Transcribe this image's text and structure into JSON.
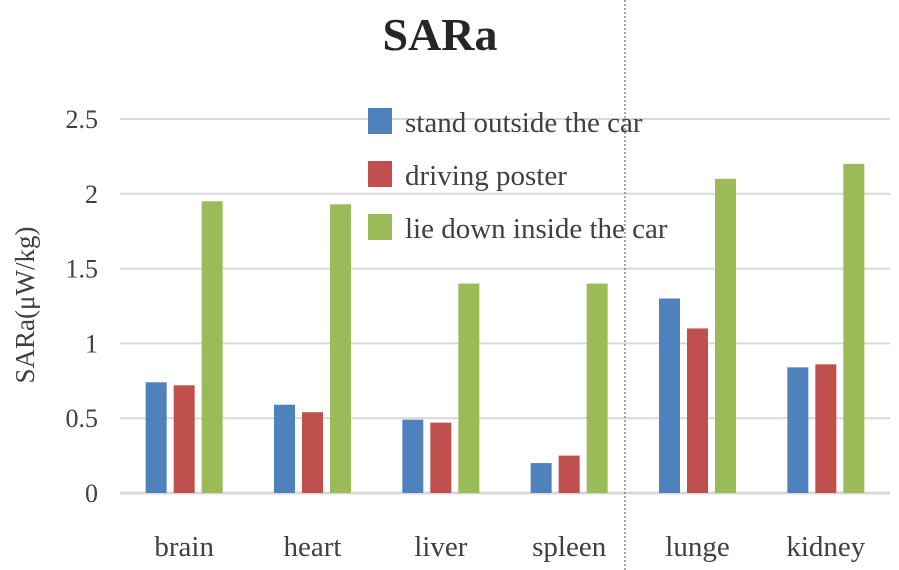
{
  "chart_data": {
    "type": "bar",
    "title": "SARa",
    "xlabel": "",
    "ylabel": "SARa(μW/kg)",
    "categories": [
      "brain",
      "heart",
      "liver",
      "spleen",
      "lunge",
      "kidney"
    ],
    "series": [
      {
        "name": "stand outside the car",
        "color": "#4f81bd",
        "values": [
          0.74,
          0.59,
          0.49,
          0.2,
          1.3,
          0.84
        ]
      },
      {
        "name": "driving poster",
        "color": "#c0504d",
        "values": [
          0.72,
          0.54,
          0.47,
          0.25,
          1.1,
          0.86
        ]
      },
      {
        "name": "lie down inside the car",
        "color": "#9bbb59",
        "values": [
          1.95,
          1.93,
          1.4,
          1.4,
          2.1,
          2.2
        ]
      }
    ],
    "ylim": [
      0,
      2.5
    ],
    "yticks": [
      "0",
      "0.5",
      "1",
      "1.5",
      "2",
      "2.5"
    ],
    "grid": true,
    "legend": "top-center"
  }
}
